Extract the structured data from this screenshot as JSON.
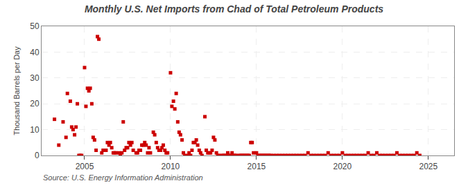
{
  "chart_data": {
    "type": "scatter",
    "title": "Monthly U.S. Net Imports from Chad of Total Petroleum Products",
    "ylabel": "Thousand Barrels per Day",
    "annotations": [
      "Source: U.S. Energy Information Administration"
    ],
    "color": "#cc0000",
    "marker": "square",
    "grid": true,
    "xlim": [
      2002.5,
      2026.5
    ],
    "xticks": [
      2005,
      2010,
      2015,
      2020,
      2025
    ],
    "ylim": [
      0,
      50
    ],
    "yticks": [
      0,
      10,
      20,
      30,
      40,
      50
    ],
    "x": [
      2003.25,
      2003.5,
      2003.75,
      2003.92,
      2004.0,
      2004.17,
      2004.25,
      2004.33,
      2004.42,
      2004.5,
      2004.58,
      2004.67,
      2004.75,
      2004.83,
      2005.0,
      2005.08,
      2005.17,
      2005.25,
      2005.33,
      2005.42,
      2005.5,
      2005.58,
      2005.67,
      2005.75,
      2005.83,
      2006.0,
      2006.08,
      2006.17,
      2006.25,
      2006.33,
      2006.42,
      2006.5,
      2006.58,
      2006.67,
      2006.75,
      2006.83,
      2007.0,
      2007.08,
      2007.17,
      2007.25,
      2007.33,
      2007.42,
      2007.5,
      2007.58,
      2007.67,
      2007.75,
      2007.83,
      2008.0,
      2008.08,
      2008.17,
      2008.25,
      2008.33,
      2008.42,
      2008.5,
      2008.58,
      2008.67,
      2008.75,
      2008.83,
      2009.0,
      2009.08,
      2009.17,
      2009.25,
      2009.33,
      2009.42,
      2009.5,
      2009.58,
      2009.67,
      2009.75,
      2009.83,
      2010.0,
      2010.08,
      2010.17,
      2010.25,
      2010.33,
      2010.42,
      2010.5,
      2010.58,
      2010.67,
      2010.75,
      2010.83,
      2011.0,
      2011.08,
      2011.17,
      2011.25,
      2011.33,
      2011.42,
      2011.5,
      2011.58,
      2011.67,
      2011.75,
      2011.83,
      2012.0,
      2012.08,
      2012.17,
      2012.25,
      2012.33,
      2012.42,
      2012.5,
      2012.58,
      2012.67,
      2012.75,
      2012.83,
      2013.0,
      2013.08,
      2013.17,
      2013.25,
      2013.33,
      2013.42,
      2013.5,
      2013.58,
      2013.67,
      2013.75,
      2013.83,
      2014.0,
      2014.08,
      2014.17,
      2014.25,
      2014.33,
      2014.42,
      2014.5,
      2014.58,
      2014.67,
      2014.75,
      2014.83,
      2015.0,
      2015.08,
      2015.17,
      2015.25,
      2015.33,
      2015.42,
      2015.5,
      2015.58,
      2015.67,
      2015.75,
      2015.83,
      2016.0,
      2016.17,
      2016.33,
      2016.5,
      2016.67,
      2016.83,
      2017.0,
      2017.17,
      2017.33,
      2017.5,
      2017.67,
      2017.83,
      2018.0,
      2018.17,
      2018.33,
      2018.5,
      2018.67,
      2018.83,
      2019.0,
      2019.17,
      2019.33,
      2019.5,
      2019.67,
      2019.83,
      2020.0,
      2020.17,
      2020.33,
      2020.5,
      2020.67,
      2020.83,
      2021.0,
      2021.17,
      2021.33,
      2021.5,
      2021.67,
      2021.83,
      2022.0,
      2022.17,
      2022.33,
      2022.5,
      2022.67,
      2022.83,
      2023.0,
      2023.17,
      2023.33,
      2023.5,
      2023.67,
      2023.83,
      2024.0,
      2024.17,
      2024.33,
      2024.5
    ],
    "values": [
      14,
      4,
      13,
      7,
      24,
      21,
      11,
      10,
      8,
      11,
      20,
      0,
      0,
      0,
      34,
      19,
      26,
      25,
      26,
      20,
      7,
      6,
      2,
      46,
      45,
      1,
      2,
      2,
      2,
      5,
      4,
      5,
      3,
      1,
      1,
      1,
      1,
      0,
      1,
      13,
      2,
      3,
      3,
      5,
      4,
      5,
      2,
      1,
      1,
      2,
      2,
      4,
      4,
      5,
      4,
      1,
      3,
      1,
      9,
      8,
      5,
      3,
      2,
      2,
      3,
      4,
      2,
      1,
      1,
      32,
      19,
      21,
      18,
      24,
      13,
      9,
      8,
      6,
      1,
      0,
      0,
      1,
      0,
      2,
      5,
      5,
      6,
      4,
      2,
      1,
      0,
      15,
      2,
      1,
      1,
      1,
      2,
      7,
      6,
      1,
      0,
      0,
      0,
      0,
      0,
      0,
      1,
      0,
      0,
      1,
      0,
      0,
      0,
      0,
      0,
      0,
      0,
      0,
      0,
      0,
      0,
      5,
      5,
      1,
      1,
      0,
      0,
      0,
      0,
      0,
      0,
      0,
      0,
      0,
      0,
      0,
      0,
      0,
      0,
      0,
      0,
      0,
      0,
      0,
      0,
      0,
      0,
      1,
      0,
      0,
      0,
      0,
      0,
      0,
      1,
      0,
      0,
      0,
      0,
      1,
      0,
      0,
      0,
      0,
      0,
      0,
      0,
      0,
      1,
      0,
      0,
      1,
      0,
      0,
      0,
      0,
      0,
      0,
      1,
      0,
      0,
      0,
      0,
      0,
      0,
      1,
      0
    ]
  }
}
